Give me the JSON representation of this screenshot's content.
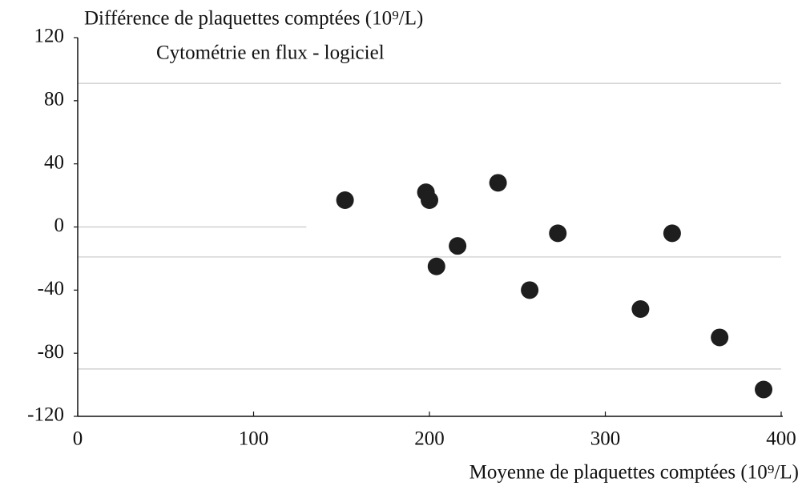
{
  "chart_data": {
    "type": "scatter",
    "title": "Différence de plaquettes comptées (10⁹/L)",
    "subtitle": "Cytométrie en flux - logiciel",
    "x_label": "Moyenne de plaquettes comptées (10⁹/L)",
    "x": [
      152,
      198,
      200,
      216,
      204,
      239,
      257,
      273,
      338,
      320,
      365,
      390
    ],
    "values": [
      17,
      22,
      17,
      -12,
      -25,
      28,
      -40,
      -4,
      -4,
      -52,
      -70,
      -103
    ],
    "color": "#1e1e1e",
    "xlim": [
      0,
      400
    ],
    "xticks": [
      0,
      100,
      200,
      300,
      400
    ],
    "ylim": [
      -120,
      120
    ],
    "yticks": [
      120,
      80,
      40,
      0,
      -40,
      -80,
      -120
    ],
    "reference_lines": [
      {
        "y": 91
      },
      {
        "y": -19
      },
      {
        "y": -90
      },
      {
        "y": 0,
        "x_end": 130
      }
    ],
    "reference_color": "#c8c8c8"
  }
}
